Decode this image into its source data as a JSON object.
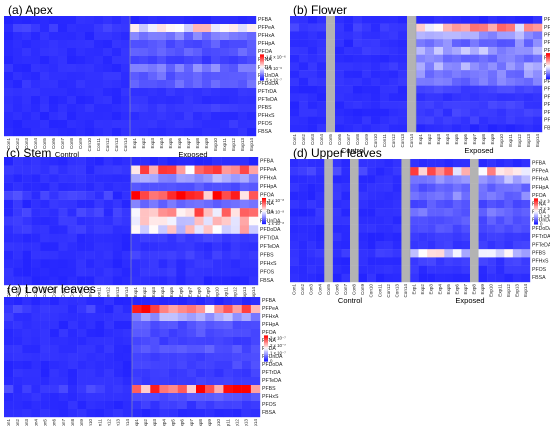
{
  "chart_data": [
    {
      "type": "heatmap",
      "title": "(a) Apex",
      "rows": [
        "PFBA",
        "PFPeA",
        "PFHxA",
        "PFHpA",
        "PFOA",
        "PFNA",
        "PFDA",
        "PFUnDA",
        "PFDoDA",
        "PFTrDA",
        "PFTeDA",
        "PFBS",
        "PFHxS",
        "PFOS",
        "FBSA"
      ],
      "columns": [
        "Con1",
        "Con2",
        "Con3",
        "Con4",
        "Con5",
        "Con6",
        "Con7",
        "Con8",
        "Con9",
        "Con10",
        "Con11",
        "Con12",
        "Con13",
        "Con14",
        "Exp1",
        "Exp2",
        "Exp3",
        "Exp4",
        "Exp5",
        "Exp6",
        "Exp7",
        "Exp8",
        "Exp9",
        "Exp10",
        "Exp11",
        "Exp12",
        "Exp13",
        "Exp14"
      ],
      "groups": [
        {
          "label": "Control",
          "from": 0,
          "to": 13
        },
        {
          "label": "Exposed",
          "from": 14,
          "to": 27
        }
      ],
      "legend": {
        "labels": [
          "1.5 x 10⁻⁶",
          "1 x 10⁻⁶",
          "5 x 10⁻⁷"
        ],
        "colors": [
          "#ff0000",
          "#ffffff",
          "#1a1aff"
        ]
      },
      "missing_columns": [],
      "row_scale": [
        0,
        0.3,
        0.1,
        0.05,
        0.06,
        0.03,
        0.1,
        0.08,
        0.07,
        0.01,
        0.01,
        0.02,
        0.01,
        0.01,
        0.0
      ]
    },
    {
      "type": "heatmap",
      "title": "(b) Flower",
      "rows": [
        "PFBA",
        "PFPeA",
        "PFHxA",
        "PFHpA",
        "PFOA",
        "PFNA",
        "PFDA",
        "PFUnDA",
        "PFDoDA",
        "PFTrDA",
        "PFTeDA",
        "PFBS",
        "PFHxS",
        "PFOS",
        "FBSA"
      ],
      "columns": [
        "Con1",
        "Con2",
        "Con3",
        "Con4",
        "Con5",
        "Con6",
        "Con7",
        "Con8",
        "Con9",
        "Con10",
        "Con11",
        "Con12",
        "Con13",
        "Con14",
        "Exp1",
        "Exp2",
        "Exp3",
        "Exp4",
        "Exp5",
        "Exp6",
        "Exp7",
        "Exp8",
        "Exp9",
        "Exp10",
        "Exp11",
        "Exp12",
        "Exp13",
        "Exp14"
      ],
      "groups": [
        {
          "label": "Control",
          "from": 0,
          "to": 13
        },
        {
          "label": "Exposed",
          "from": 14,
          "to": 27
        }
      ],
      "legend": {
        "labels": [
          "2 x 10⁻⁷",
          "1.5 x 10⁻⁷",
          "1 x 10⁻⁷",
          "5 x 10⁻⁸"
        ],
        "colors": [
          "#ff0000",
          "#ffffff",
          "#1a1aff"
        ]
      },
      "missing_columns": [
        "Con5",
        "Con14"
      ],
      "row_scale": [
        0,
        0.35,
        0.15,
        0.1,
        0.18,
        0.1,
        0.15,
        0.12,
        0.1,
        0.03,
        0.01,
        0.03,
        0.02,
        0.02,
        0.0
      ]
    },
    {
      "type": "heatmap",
      "title": "(c) Stem",
      "rows": [
        "PFBA",
        "PFPeA",
        "PFHxA",
        "PFHpA",
        "PFOA",
        "PFNA",
        "PFDA",
        "PFUnDA",
        "PFDoDA",
        "PFTrDA",
        "PFTeDA",
        "PFBS",
        "PFHxS",
        "PFOS",
        "FBSA"
      ],
      "columns": [
        "Con1",
        "Con2",
        "Con3",
        "Con4",
        "Con5",
        "Con6",
        "Con7",
        "Con8",
        "Con9",
        "Con10",
        "Con11",
        "Con12",
        "Con13",
        "Con14",
        "Exp1",
        "Exp2",
        "Exp3",
        "Exp4",
        "Exp5",
        "Exp6",
        "Exp7",
        "Exp8",
        "Exp9",
        "Exp10",
        "Exp11",
        "Exp12",
        "Exp13",
        "Exp14"
      ],
      "groups": [
        {
          "label": "Control",
          "from": 0,
          "to": 13
        },
        {
          "label": "Exposed",
          "from": 14,
          "to": 27
        }
      ],
      "legend": {
        "labels": [
          "3 x 10⁻⁸",
          "2 x 10⁻⁸",
          "1 x 10⁻⁸"
        ],
        "colors": [
          "#ff0000",
          "#ffffff",
          "#1a1aff"
        ]
      },
      "missing_columns": [],
      "row_scale": [
        0,
        0.4,
        0.15,
        0.05,
        0.5,
        0.1,
        0.4,
        0.3,
        0.3,
        0.02,
        0.01,
        0.02,
        0.01,
        0.01,
        0.0
      ]
    },
    {
      "type": "heatmap",
      "title": "(d) Upper leaves",
      "rows": [
        "PFBA",
        "PFPeA",
        "PFHxA",
        "PFHpA",
        "PFOA",
        "PFNA",
        "PFDA",
        "PFUnDA",
        "PFDoDA",
        "PFTrDA",
        "PFTeDA",
        "PFBS",
        "PFHxS",
        "PFOS",
        "FBSA"
      ],
      "columns": [
        "Con1",
        "Con2",
        "Con3",
        "Con4",
        "Con5",
        "Con6",
        "Con7",
        "Con8",
        "Con9",
        "Con10",
        "Con11",
        "Con12",
        "Con13",
        "Con14",
        "Exp1",
        "Exp2",
        "Exp3",
        "Exp4",
        "Exp5",
        "Exp6",
        "Exp7",
        "Exp8",
        "Exp9",
        "Exp10",
        "Exp11",
        "Exp12",
        "Exp13",
        "Exp14"
      ],
      "groups": [
        {
          "label": "Control",
          "from": 0,
          "to": 13
        },
        {
          "label": "Exposed",
          "from": 14,
          "to": 27
        }
      ],
      "legend": {
        "labels": [
          "3 x 10⁻⁷",
          "2 x 10⁻⁷",
          "1 x 10⁻⁷",
          "0"
        ],
        "colors": [
          "#ff0000",
          "#ffffff",
          "#1a1aff"
        ]
      },
      "missing_columns": [
        "Con5",
        "Con8",
        "Con14",
        "Exp8"
      ],
      "row_scale": [
        0,
        0.4,
        0.15,
        0.08,
        0.1,
        0.05,
        0.08,
        0.05,
        0.05,
        0.02,
        0.02,
        0.25,
        0.02,
        0.01,
        0.0
      ]
    },
    {
      "type": "heatmap",
      "title": "(e) Lower leaves",
      "rows": [
        "PFBA",
        "PFPeA",
        "PFHxA",
        "PFHpA",
        "PFOA",
        "PFNA",
        "PFDA",
        "PFUnDA",
        "PFDoDA",
        "PFTrDA",
        "PFTeDA",
        "PFBS",
        "PFHxS",
        "PFOS",
        "FBSA"
      ],
      "columns": [
        "Con1",
        "Con2",
        "Con3",
        "Con4",
        "Con5",
        "Con6",
        "Con7",
        "Con8",
        "Con9",
        "Con10",
        "Con11",
        "Con12",
        "Con13",
        "Con14",
        "Exp1",
        "Exp2",
        "Exp3",
        "Exp4",
        "Exp5",
        "Exp6",
        "Exp7",
        "Exp8",
        "Exp9",
        "Exp10",
        "Exp11",
        "Exp12",
        "Exp13",
        "Exp14"
      ],
      "groups": [
        {
          "label": "Control",
          "from": 0,
          "to": 13
        },
        {
          "label": "Exposed",
          "from": 14,
          "to": 27
        }
      ],
      "legend": {
        "labels": [
          "3 x 10⁻⁷",
          "2 x 10⁻⁷",
          "1 x 10⁻⁷",
          "0"
        ],
        "colors": [
          "#ff0000",
          "#ffffff",
          "#1a1aff"
        ]
      },
      "missing_columns": [],
      "row_scale": [
        0,
        0.45,
        0.15,
        0.05,
        0.05,
        0.03,
        0.05,
        0.03,
        0.03,
        0.02,
        0.02,
        0.45,
        0.05,
        0.02,
        0.0
      ]
    }
  ]
}
